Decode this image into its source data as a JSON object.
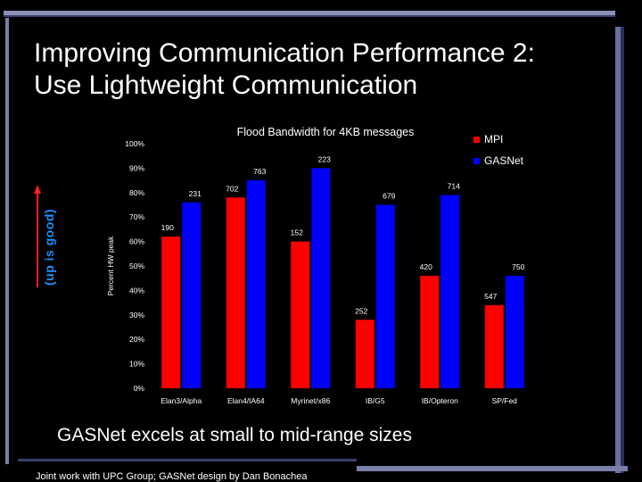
{
  "slide": {
    "title_line1": "Improving Communication Performance 2:",
    "title_line2": "Use Lightweight Communication",
    "side_label": "(up is good)",
    "caption": "GASNet excels at small to mid-range sizes",
    "footer": "Joint work with UPC Group; GASNet design by Dan Bonachea"
  },
  "colors": {
    "mpi": "#ff0000",
    "gasnet": "#0000ff",
    "side_label": "#1e90ff"
  },
  "chart_data": {
    "type": "bar",
    "title": "Flood Bandwidth for 4KB messages",
    "ylabel": "Percent HW peak",
    "xlabel": "",
    "ylim": [
      0,
      100
    ],
    "yticks": [
      "0%",
      "10%",
      "20%",
      "30%",
      "40%",
      "50%",
      "60%",
      "70%",
      "80%",
      "90%",
      "100%"
    ],
    "grid": false,
    "legend": "top-right",
    "categories": [
      "Elan3/Alpha",
      "Elan4/IA64",
      "Myrinet/x86",
      "IB/G5",
      "IB/Opteron",
      "SP/Fed"
    ],
    "series": [
      {
        "name": "MPI",
        "values": [
          62,
          78,
          60,
          28,
          46,
          34
        ],
        "labels": [
          "190",
          "702",
          "152",
          "252",
          "420",
          "547"
        ]
      },
      {
        "name": "GASNet",
        "values": [
          76,
          85,
          90,
          75,
          79,
          46
        ],
        "labels": [
          "231",
          "763",
          "223",
          "679",
          "714",
          "750"
        ]
      }
    ]
  }
}
